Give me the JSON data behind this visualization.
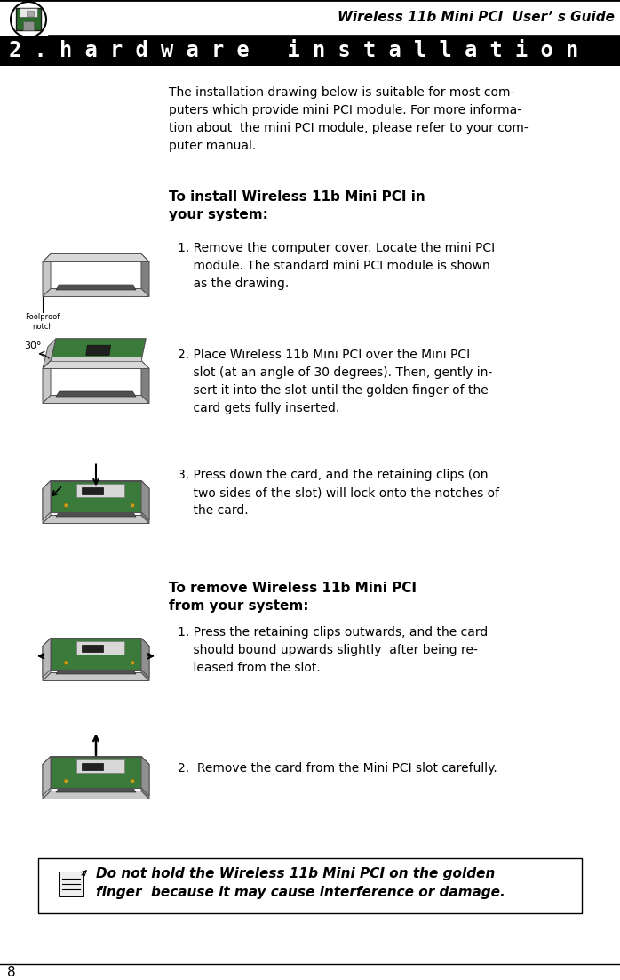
{
  "title_header": "Wireless 11b Mini PCI  User’ s Guide",
  "section_title": "2 . h a r d w a r e   i n s t a l l a t i o n",
  "page_bg": "#ffffff",
  "page_number": "8",
  "intro_text": "The installation drawing below is suitable for most com-\nputers which provide mini PCI module. For more informa-\ntion about  the mini PCI module, please refer to your com-\nputer manual.",
  "install_heading_1": "To install Wireless 11b Mini PCI in",
  "install_heading_2": "your system:",
  "install_steps": [
    "1. Remove the computer cover. Locate the mini PCI\n    module. The standard mini PCI module is shown\n    as the drawing.",
    "2. Place Wireless 11b Mini PCI over the Mini PCI\n    slot (at an angle of 30 degrees). Then, gently in-\n    sert it into the slot until the golden finger of the\n    card gets fully inserted.",
    "3. Press down the card, and the retaining clips (on\n    two sides of the slot) will lock onto the notches of\n    the card."
  ],
  "remove_heading_1": "To remove Wireless 11b Mini PCI",
  "remove_heading_2": "from your system:",
  "remove_steps": [
    "1. Press the retaining clips outwards, and the card\n    should bound upwards slightly  after being re-\n    leased from the slot.",
    "2.  Remove the card from the Mini PCI slot carefully."
  ],
  "warning_text": "Do not hold the Wireless 11b Mini PCI on the golden\nfinger  because it may cause interference or damage.",
  "card_green": "#3a7a3a",
  "card_green2": "#4a9a4a",
  "card_gray": "#b0b0b0",
  "card_silver": "#d0d0d0",
  "card_dark": "#404040",
  "card_hatching": "#888888",
  "gold": "#c8a020"
}
